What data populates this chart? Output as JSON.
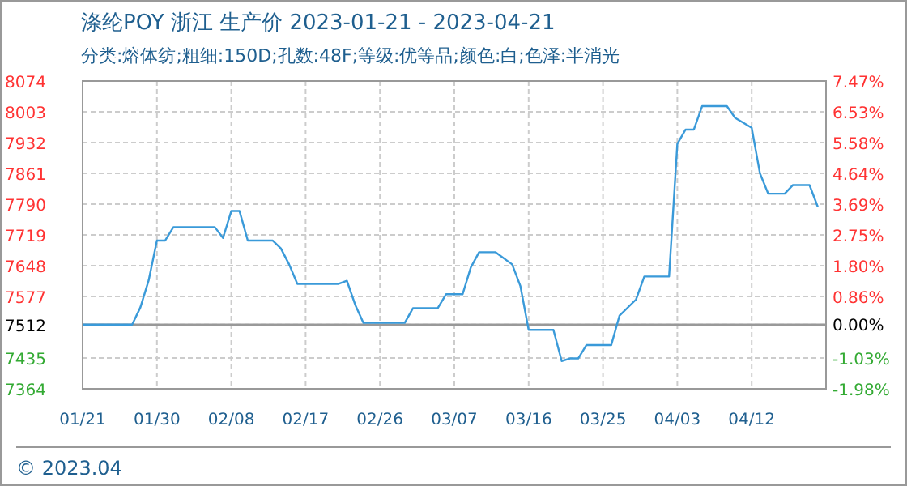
{
  "chart_data": {
    "type": "line",
    "title": "涤纶POY 浙江 生产价 2023-01-21 - 2023-04-21",
    "subtitle": "分类:熔体纺;粗细:150D;孔数:48F;等级:优等品;颜色:白;色泽:半消光",
    "annotations": [
      "© 2023.04"
    ],
    "x": [
      "2023-01-21",
      "2023-01-27",
      "2023-01-28",
      "2023-01-29",
      "2023-01-30",
      "2023-01-31",
      "2023-02-01",
      "2023-02-06",
      "2023-02-07",
      "2023-02-08",
      "2023-02-09",
      "2023-02-10",
      "2023-02-13",
      "2023-02-14",
      "2023-02-15",
      "2023-02-16",
      "2023-02-21",
      "2023-02-22",
      "2023-02-23",
      "2023-02-24",
      "2023-03-01",
      "2023-03-02",
      "2023-03-05",
      "2023-03-06",
      "2023-03-08",
      "2023-03-09",
      "2023-03-10",
      "2023-03-12",
      "2023-03-14",
      "2023-03-15",
      "2023-03-16",
      "2023-03-19",
      "2023-03-20",
      "2023-03-21",
      "2023-03-22",
      "2023-03-23",
      "2023-03-26",
      "2023-03-27",
      "2023-03-29",
      "2023-03-30",
      "2023-04-02",
      "2023-04-03",
      "2023-04-04",
      "2023-04-05",
      "2023-04-06",
      "2023-04-09",
      "2023-04-10",
      "2023-04-12",
      "2023-04-13",
      "2023-04-14",
      "2023-04-16",
      "2023-04-17",
      "2023-04-19",
      "2023-04-20"
    ],
    "series": [
      {
        "color": "#3a9ad9",
        "values": [
          7512,
          7512,
          7552,
          7614,
          7706,
          7706,
          7737,
          7737,
          7712,
          7774,
          7774,
          7706,
          7706,
          7688,
          7651,
          7606,
          7606,
          7613,
          7558,
          7516,
          7516,
          7550,
          7550,
          7582,
          7582,
          7644,
          7679,
          7679,
          7651,
          7601,
          7500,
          7500,
          7428,
          7434,
          7434,
          7465,
          7465,
          7533,
          7570,
          7623,
          7623,
          7929,
          7962,
          7962,
          8016,
          8016,
          7989,
          7966,
          7861,
          7814,
          7814,
          7834,
          7834,
          7784
        ]
      }
    ],
    "xlim": [
      "2023-01-21",
      "2023-04-21"
    ],
    "xticks": [
      {
        "value": "2023-01-21",
        "label": "01/21"
      },
      {
        "value": "2023-01-30",
        "label": "01/30"
      },
      {
        "value": "2023-02-08",
        "label": "02/08"
      },
      {
        "value": "2023-02-17",
        "label": "02/17"
      },
      {
        "value": "2023-02-26",
        "label": "02/26"
      },
      {
        "value": "2023-03-07",
        "label": "03/07"
      },
      {
        "value": "2023-03-16",
        "label": "03/16"
      },
      {
        "value": "2023-03-25",
        "label": "03/25"
      },
      {
        "value": "2023-04-03",
        "label": "04/03"
      },
      {
        "value": "2023-04-12",
        "label": "04/12"
      }
    ],
    "ylim": [
      7364,
      8074
    ],
    "yticks": [
      7364,
      7435,
      7512,
      7577,
      7648,
      7719,
      7790,
      7861,
      7932,
      8003,
      8074
    ],
    "y2lim": [
      -1.98,
      7.47
    ],
    "y2ticks": [
      {
        "value": -1.98,
        "label": "-1.98%"
      },
      {
        "value": -1.03,
        "label": "-1.03%"
      },
      {
        "value": 0,
        "label": "0.00%"
      },
      {
        "value": 0.86,
        "label": "0.86%"
      },
      {
        "value": 1.8,
        "label": "1.80%"
      },
      {
        "value": 2.75,
        "label": "2.75%"
      },
      {
        "value": 3.69,
        "label": "3.69%"
      },
      {
        "value": 4.64,
        "label": "4.64%"
      },
      {
        "value": 5.58,
        "label": "5.58%"
      },
      {
        "value": 6.53,
        "label": "6.53%"
      },
      {
        "value": 7.47,
        "label": "7.47%"
      }
    ],
    "ref_lines": [
      {
        "axis": "y",
        "value": 7512,
        "color": "#999999"
      }
    ],
    "grid": true,
    "line_style": "solid"
  }
}
